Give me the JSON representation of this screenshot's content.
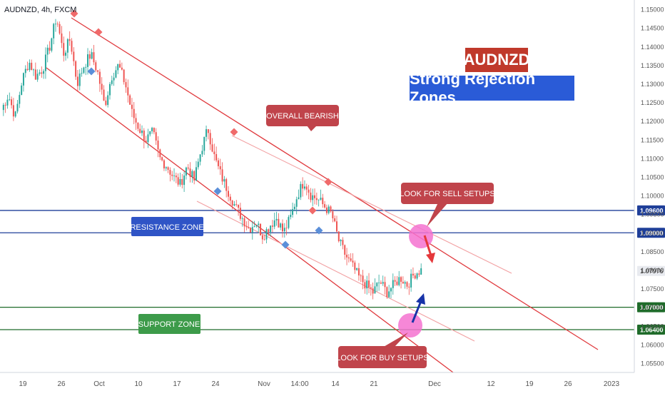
{
  "header": {
    "symbol_label": "AUDNZD, 4h, FXCM"
  },
  "titles": {
    "pair": "AUDNZD",
    "subtitle": "Strong Rejection Zones",
    "pair_bg": "#c0392b",
    "subtitle_bg": "#2a5bd7"
  },
  "chart_data": {
    "type": "candlestick",
    "symbol": "AUDNZD",
    "timeframe": "4h",
    "source": "FXCM",
    "ylim": [
      1.0525,
      1.1525
    ],
    "y_ticks": [
      1.055,
      1.06,
      1.065,
      1.07,
      1.075,
      1.08,
      1.085,
      1.09,
      1.095,
      1.1,
      1.105,
      1.11,
      1.115,
      1.12,
      1.125,
      1.13,
      1.135,
      1.14,
      1.145,
      1.15
    ],
    "y_tick_labels": [
      "1.05500",
      "1.06000",
      "1.06500",
      "1.07000",
      "1.07500",
      "1.08000",
      "1.08500",
      "1.09000",
      "1.09500",
      "1.10000",
      "1.10500",
      "1.11000",
      "1.11500",
      "1.12000",
      "1.12500",
      "1.13000",
      "1.13500",
      "1.14000",
      "1.14500",
      "1.15000"
    ],
    "x_ticks": [
      "19",
      "26",
      "Oct",
      "10",
      "17",
      "24",
      "Nov",
      "14:00",
      "14",
      "21",
      "Dec",
      "12",
      "19",
      "26",
      "2023"
    ],
    "last_price": "1.07976",
    "levels": [
      {
        "name": "resistance-upper",
        "value": 1.096,
        "label": "1.09600",
        "color": "#1f3f99"
      },
      {
        "name": "resistance-lower",
        "value": 1.09,
        "label": "1.09000",
        "color": "#1f3f99"
      },
      {
        "name": "support-upper",
        "value": 1.07,
        "label": "1.07000",
        "color": "#1f6b2a"
      },
      {
        "name": "support-lower",
        "value": 1.064,
        "label": "1.06400",
        "color": "#1f6b2a"
      }
    ],
    "price_path": [
      1.123,
      1.127,
      1.121,
      1.131,
      1.136,
      1.132,
      1.134,
      1.14,
      1.148,
      1.138,
      1.142,
      1.13,
      1.135,
      1.138,
      1.133,
      1.124,
      1.132,
      1.135,
      1.13,
      1.122,
      1.118,
      1.115,
      1.117,
      1.11,
      1.108,
      1.105,
      1.103,
      1.108,
      1.104,
      1.112,
      1.118,
      1.11,
      1.105,
      1.101,
      1.097,
      1.094,
      1.091,
      1.093,
      1.089,
      1.092,
      1.094,
      1.09,
      1.094,
      1.1,
      1.104,
      1.1,
      1.099,
      1.097,
      1.095,
      1.088,
      1.084,
      1.081,
      1.078,
      1.076,
      1.074,
      1.077,
      1.074,
      1.076,
      1.078,
      1.076,
      1.079,
      1.08
    ],
    "colors": {
      "up": "#26a69a",
      "down": "#ef5350",
      "channel": "#e03a3e",
      "channel_light": "#f2a0a2"
    },
    "annotations": {
      "resistance_zone": "RESISTANCE ZONE",
      "support_zone": "SUPPORT ZONE",
      "overall_bearish": "OVERALL BEARISH",
      "look_sell": "LOOK FOR SELL SETUPS",
      "look_buy": "LOOK FOR BUY SETUPS"
    }
  }
}
